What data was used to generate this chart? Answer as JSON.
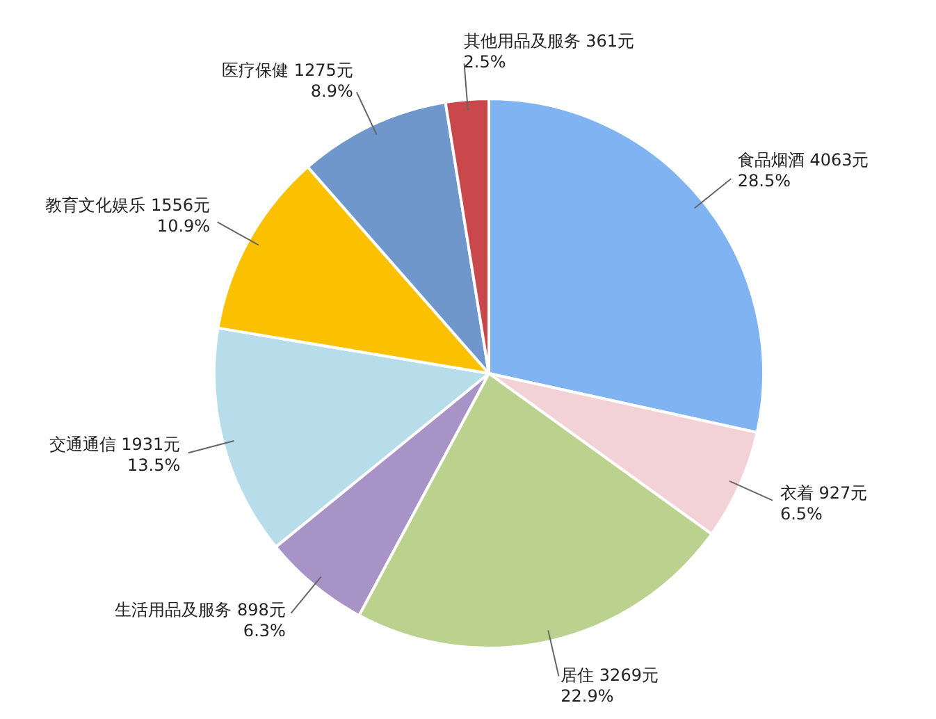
{
  "chart_data": {
    "type": "pie",
    "categories": [
      "食品烟酒",
      "衣着",
      "居住",
      "生活用品及服务",
      "交通通信",
      "教育文化娱乐",
      "医疗保健",
      "其他用品及服务"
    ],
    "values": [
      4063,
      927,
      3269,
      898,
      1931,
      1556,
      1275,
      361
    ],
    "value_labels": [
      "4063元\n28.5%",
      "927元\n6.5%",
      "3269元\n22.9%",
      "898元\n6.3%",
      "1931元\n13.5%",
      "1556元\n10.9%",
      "1275元\n8.9%",
      "361元\n2.5%"
    ],
    "colors": [
      "#80b3f2",
      "#f2d2d6",
      "#bad28e",
      "#a793c6",
      "#b6dde9",
      "#fbc000",
      "#7097cb",
      "#c9484c"
    ],
    "legend": false
  }
}
